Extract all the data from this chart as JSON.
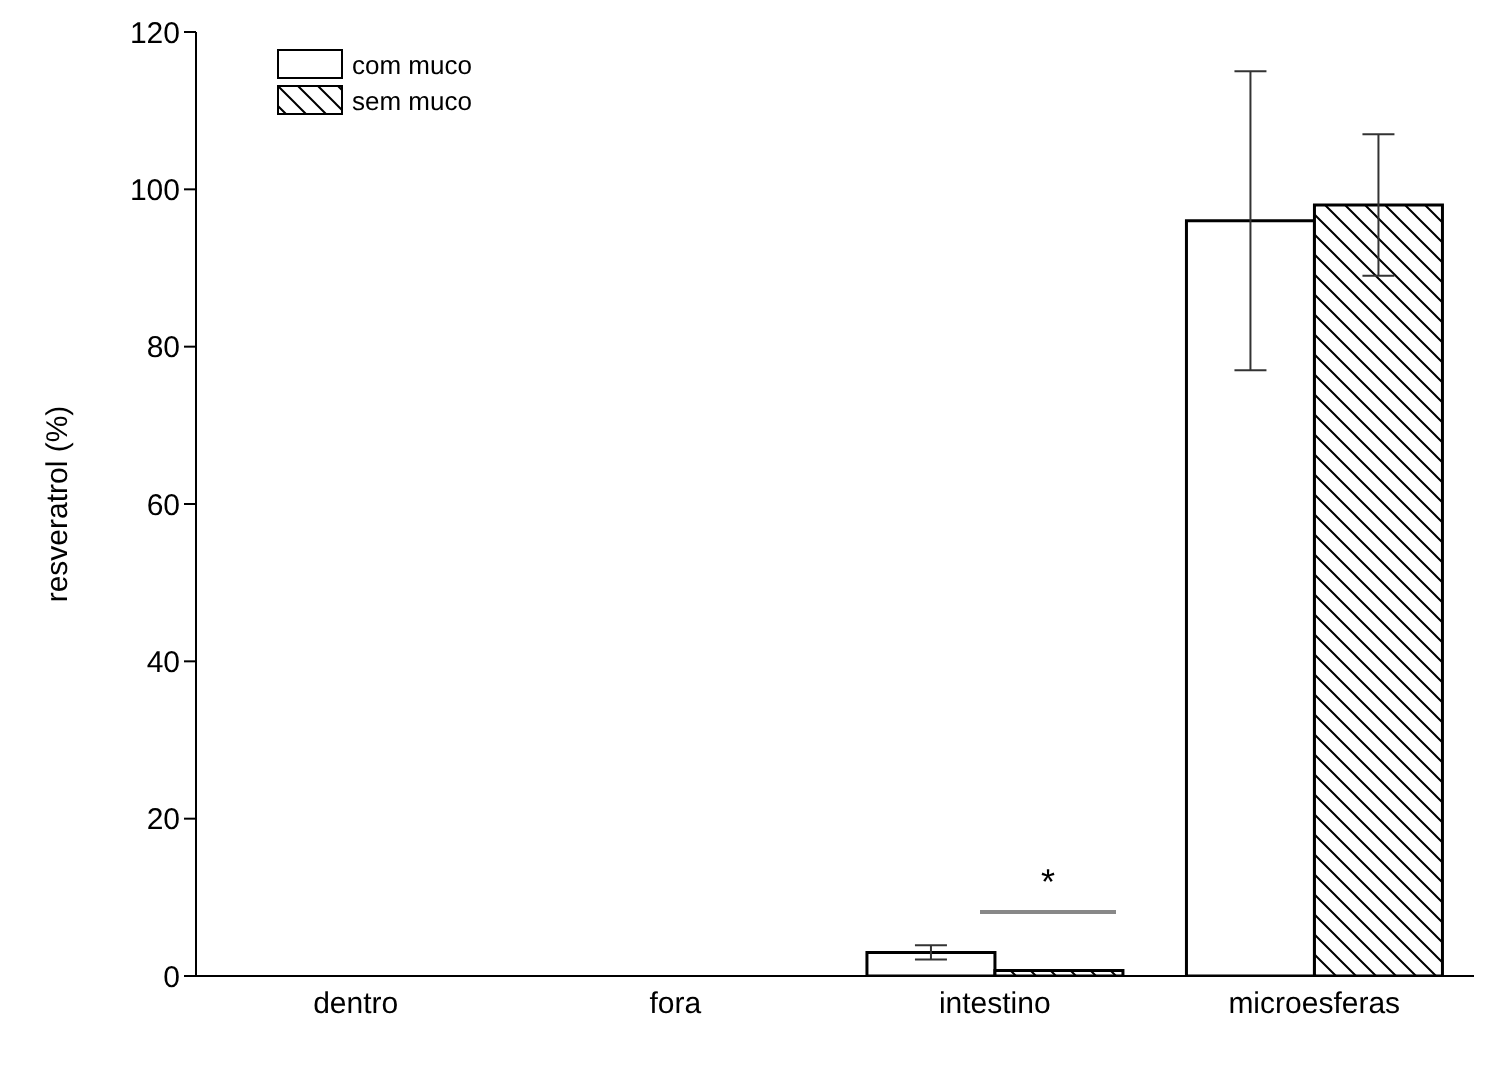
{
  "chart_data": {
    "type": "bar",
    "ylabel": "resveratrol  (%)",
    "categories": [
      "dentro",
      "fora",
      "intestino",
      "microesferas"
    ],
    "series": [
      {
        "name": "com muco",
        "color": "#ffffff",
        "values": [
          0,
          0,
          3,
          96
        ],
        "errors": [
          null,
          null,
          0.9,
          19
        ]
      },
      {
        "name": "sem muco",
        "color": "#000000",
        "values": [
          0,
          0,
          0.7,
          98
        ],
        "errors": [
          null,
          null,
          null,
          9
        ]
      }
    ],
    "ylim": [
      0,
      120
    ],
    "yticks": [
      0,
      20,
      40,
      60,
      80,
      100,
      120
    ],
    "grid": false,
    "legend": "top left",
    "annotations": [
      "*"
    ]
  }
}
